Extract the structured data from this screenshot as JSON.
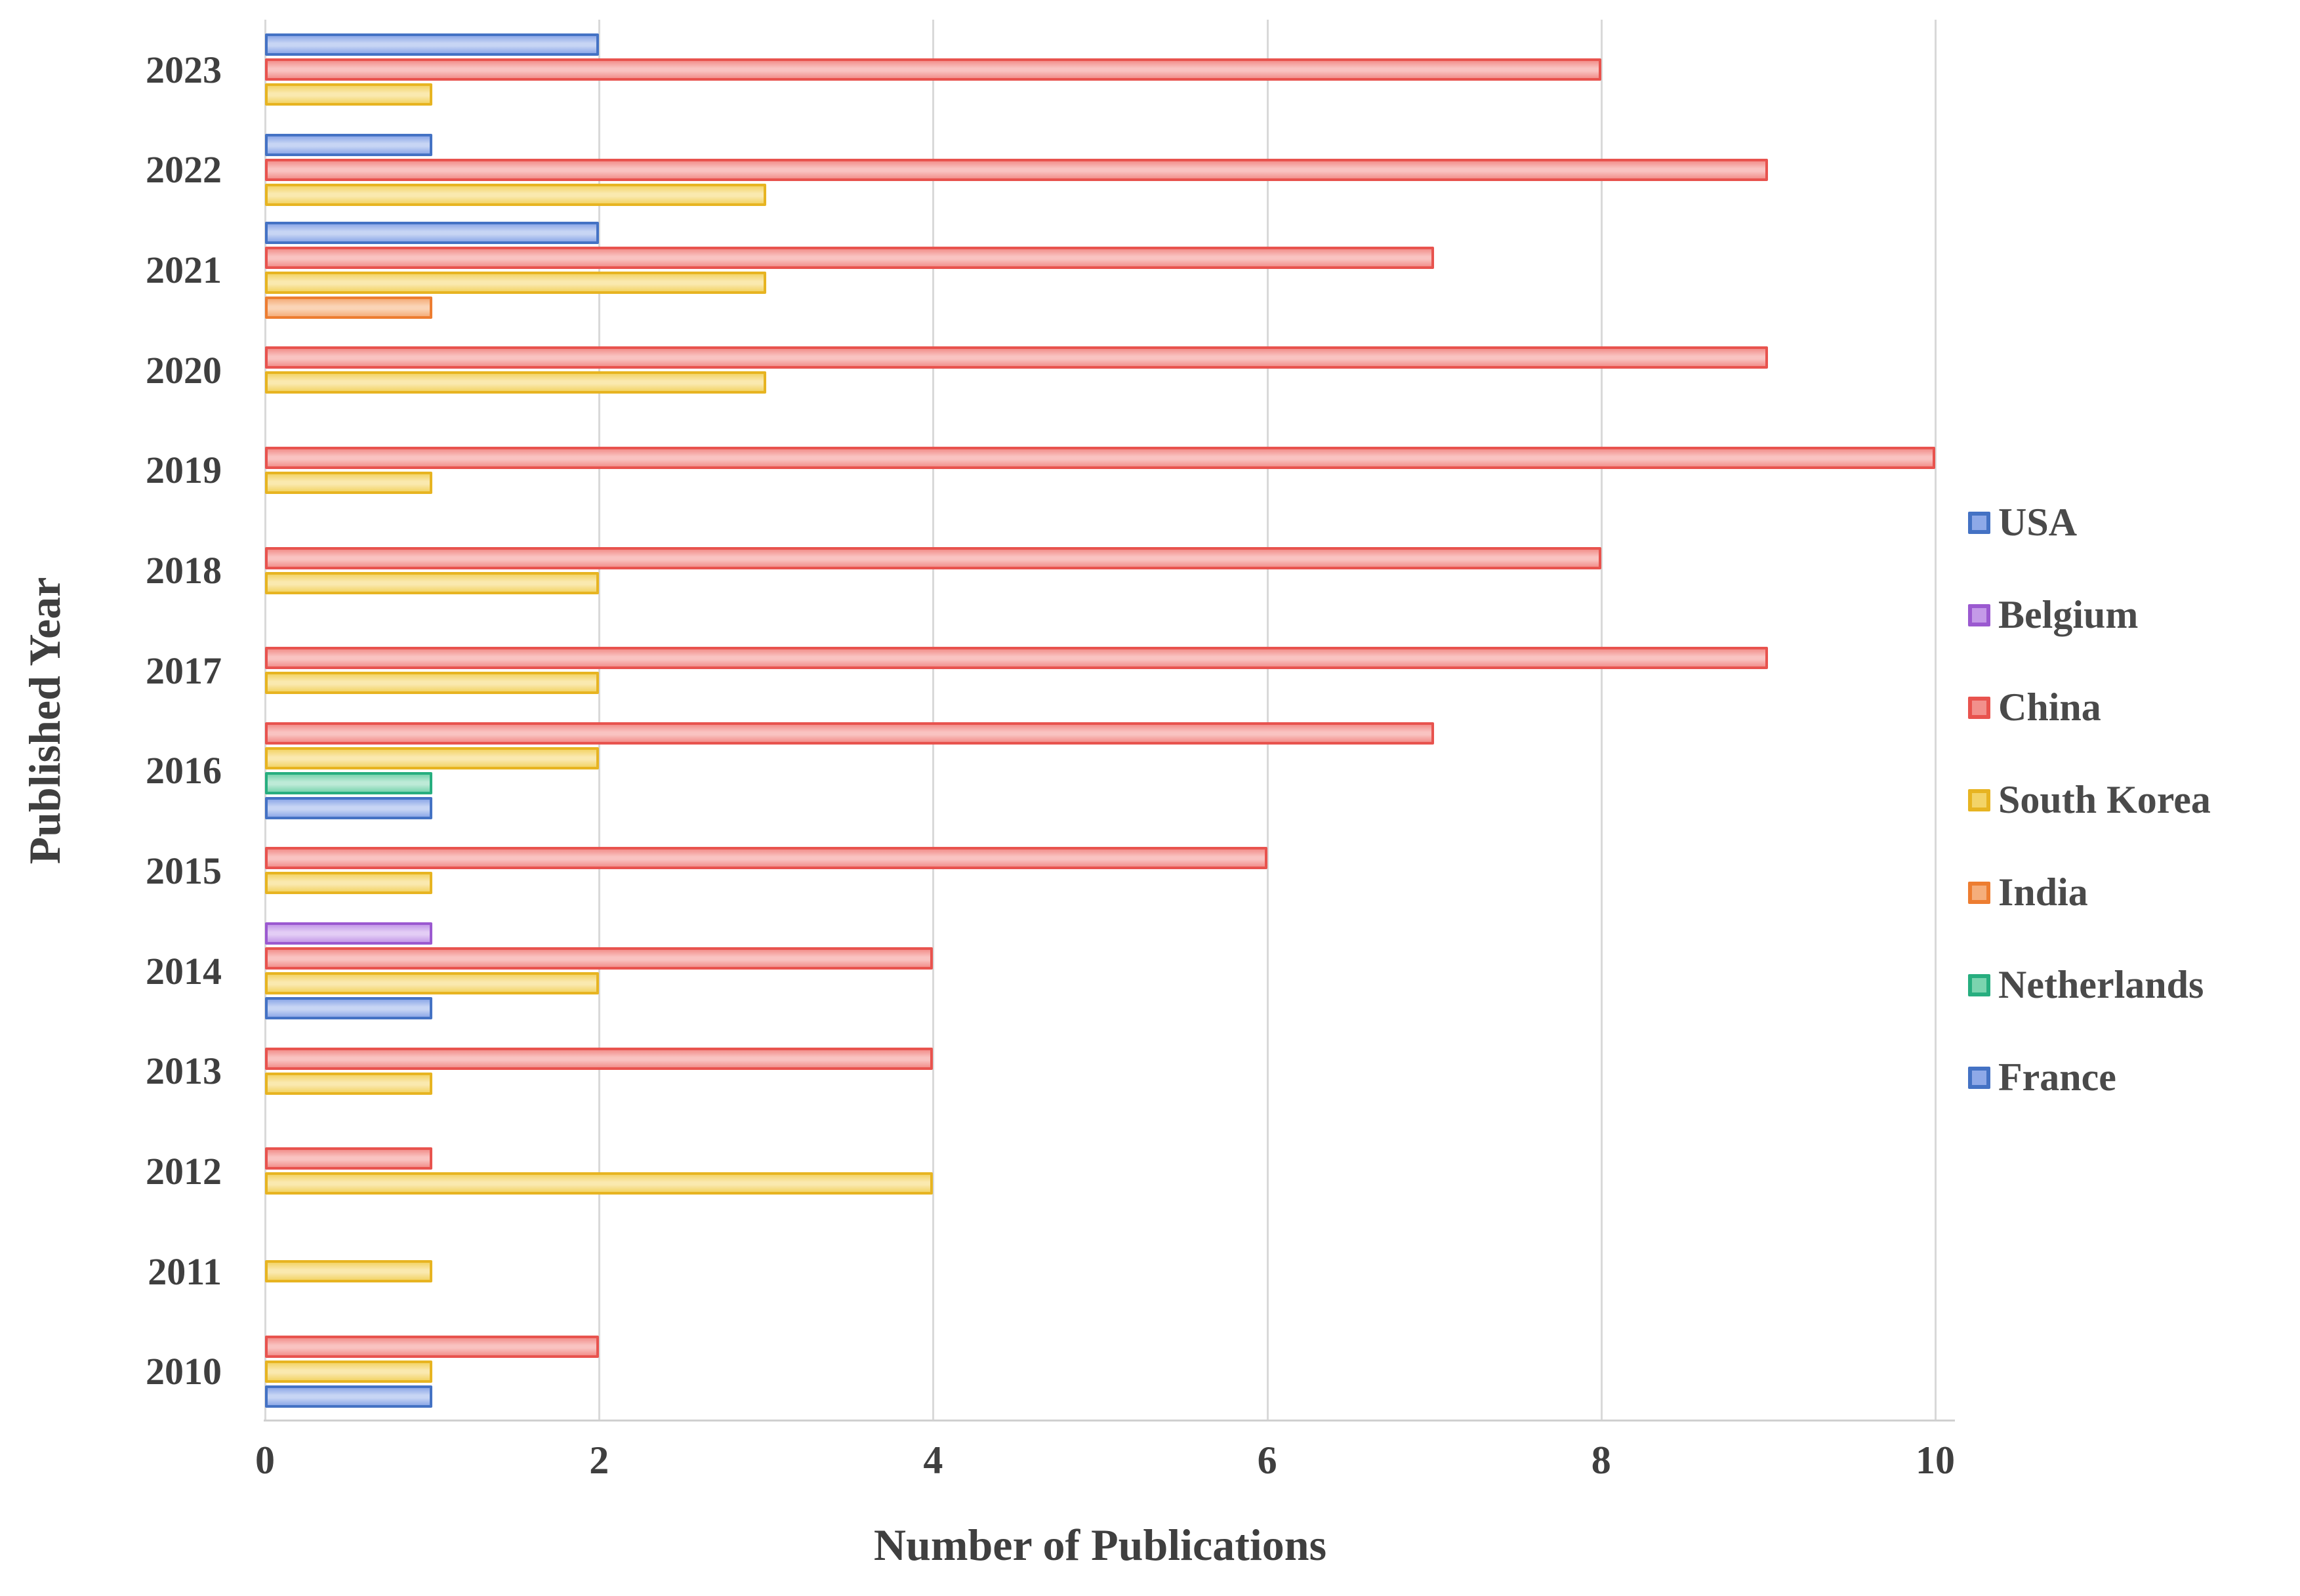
{
  "chart_data": {
    "type": "bar",
    "orientation": "horizontal",
    "title": "",
    "xlabel": "Number of Publications",
    "ylabel": "Published Year",
    "xlim": [
      0,
      10
    ],
    "xticks": [
      0,
      2,
      4,
      6,
      8,
      10
    ],
    "grid": "vertical-light-gray",
    "legend_position": "right",
    "legend": [
      "USA",
      "Belgium",
      "China",
      "South Korea",
      "India",
      "Netherlands",
      "France"
    ],
    "colors": {
      "USA": {
        "edge": "#4472C4",
        "fill": "#8EA9E8",
        "highlight": "#C7D5F4"
      },
      "Belgium": {
        "edge": "#9B59D0",
        "fill": "#C49AE8",
        "highlight": "#E3CDF5"
      },
      "China": {
        "edge": "#E8534E",
        "fill": "#F2908C",
        "highlight": "#F9C3C1"
      },
      "South Korea": {
        "edge": "#E7B421",
        "fill": "#F3D468",
        "highlight": "#FAE9AF"
      },
      "India": {
        "edge": "#ED7D31",
        "fill": "#F5AE7B",
        "highlight": "#FAD4B6"
      },
      "Netherlands": {
        "edge": "#27AE7F",
        "fill": "#7BD4AF",
        "highlight": "#BDEAD7"
      },
      "France": {
        "edge": "#4472C4",
        "fill": "#8EA9E8",
        "highlight": "#C7D5F4"
      }
    },
    "groups": [
      {
        "year": "2023",
        "bars": [
          {
            "country": "USA",
            "value": 2
          },
          {
            "country": "China",
            "value": 8
          },
          {
            "country": "South Korea",
            "value": 1
          }
        ]
      },
      {
        "year": "2022",
        "bars": [
          {
            "country": "USA",
            "value": 1
          },
          {
            "country": "China",
            "value": 9
          },
          {
            "country": "South Korea",
            "value": 3
          }
        ]
      },
      {
        "year": "2021",
        "bars": [
          {
            "country": "USA",
            "value": 2
          },
          {
            "country": "China",
            "value": 7
          },
          {
            "country": "South Korea",
            "value": 3
          },
          {
            "country": "India",
            "value": 1
          }
        ]
      },
      {
        "year": "2020",
        "bars": [
          {
            "country": "China",
            "value": 9
          },
          {
            "country": "South Korea",
            "value": 3
          }
        ]
      },
      {
        "year": "2019",
        "bars": [
          {
            "country": "China",
            "value": 10
          },
          {
            "country": "South Korea",
            "value": 1
          }
        ]
      },
      {
        "year": "2018",
        "bars": [
          {
            "country": "China",
            "value": 8
          },
          {
            "country": "South Korea",
            "value": 2
          }
        ]
      },
      {
        "year": "2017",
        "bars": [
          {
            "country": "China",
            "value": 9
          },
          {
            "country": "South Korea",
            "value": 2
          }
        ]
      },
      {
        "year": "2016",
        "bars": [
          {
            "country": "China",
            "value": 7
          },
          {
            "country": "South Korea",
            "value": 2
          },
          {
            "country": "Netherlands",
            "value": 1
          },
          {
            "country": "France",
            "value": 1
          }
        ]
      },
      {
        "year": "2015",
        "bars": [
          {
            "country": "China",
            "value": 6
          },
          {
            "country": "South Korea",
            "value": 1
          }
        ]
      },
      {
        "year": "2014",
        "bars": [
          {
            "country": "Belgium",
            "value": 1
          },
          {
            "country": "China",
            "value": 4
          },
          {
            "country": "South Korea",
            "value": 2
          },
          {
            "country": "France",
            "value": 1
          }
        ]
      },
      {
        "year": "2013",
        "bars": [
          {
            "country": "China",
            "value": 4
          },
          {
            "country": "South Korea",
            "value": 1
          }
        ]
      },
      {
        "year": "2012",
        "bars": [
          {
            "country": "China",
            "value": 1
          },
          {
            "country": "South Korea",
            "value": 4
          }
        ]
      },
      {
        "year": "2011",
        "bars": [
          {
            "country": "South Korea",
            "value": 1
          }
        ]
      },
      {
        "year": "2010",
        "bars": [
          {
            "country": "China",
            "value": 2
          },
          {
            "country": "South Korea",
            "value": 1
          },
          {
            "country": "France",
            "value": 1
          }
        ]
      }
    ]
  }
}
